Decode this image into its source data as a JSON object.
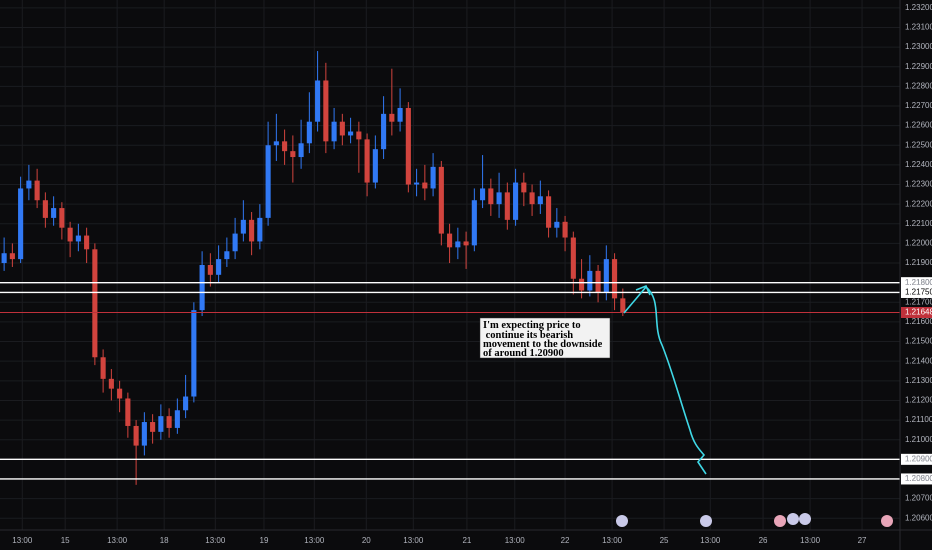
{
  "chart_data": {
    "type": "candlestick",
    "up_color": "#3179f5",
    "down_color": "#d2443e",
    "grid": true,
    "open": [
      1.219,
      1.2195,
      1.2192,
      1.2228,
      1.2232,
      1.2222,
      1.2213,
      1.2218,
      1.2208,
      1.2201,
      1.2204,
      1.2197,
      1.2142,
      1.2131,
      1.2126,
      1.2121,
      1.2107,
      1.2097,
      1.2109,
      1.2104,
      1.2112,
      1.2106,
      1.2115,
      1.2122,
      1.2166,
      1.2189,
      1.2184,
      1.2192,
      1.2196,
      1.2205,
      1.2212,
      1.2201,
      1.2213,
      1.225,
      1.2252,
      1.2247,
      1.2244,
      1.2251,
      1.2262,
      1.2283,
      1.2252,
      1.2262,
      1.2255,
      1.2257,
      1.2253,
      1.2231,
      1.2248,
      1.2266,
      1.2262,
      1.2269,
      1.223,
      1.2231,
      1.2228,
      1.2239,
      1.2205,
      1.2198,
      1.2201,
      1.2199,
      1.2222,
      1.2228,
      1.222,
      1.2226,
      1.2212,
      1.2231,
      1.2226,
      1.222,
      1.2224,
      1.2208,
      1.2211,
      1.2203,
      1.2182,
      1.2176,
      1.2186,
      1.2175,
      1.2192,
      1.2172
    ],
    "high": [
      1.2203,
      1.22,
      1.2234,
      1.224,
      1.2238,
      1.2226,
      1.2224,
      1.2221,
      1.2211,
      1.221,
      1.2208,
      1.22,
      1.2146,
      1.2136,
      1.213,
      1.2124,
      1.211,
      1.2114,
      1.2113,
      1.2118,
      1.2116,
      1.2121,
      1.2133,
      1.217,
      1.2196,
      1.2195,
      1.2199,
      1.2203,
      1.2213,
      1.2222,
      1.2216,
      1.222,
      1.2262,
      1.2266,
      1.2258,
      1.2255,
      1.2263,
      1.2277,
      1.2298,
      1.2292,
      1.2269,
      1.2266,
      1.2264,
      1.2262,
      1.2256,
      1.2255,
      1.2275,
      1.2289,
      1.2279,
      1.2272,
      1.2238,
      1.224,
      1.2246,
      1.2242,
      1.221,
      1.2208,
      1.2206,
      1.2228,
      1.2245,
      1.2233,
      1.2236,
      1.2231,
      1.2238,
      1.2236,
      1.223,
      1.2232,
      1.2227,
      1.2218,
      1.2214,
      1.2206,
      1.2192,
      1.2194,
      1.2189,
      1.2199,
      1.2195,
      1.2177
    ],
    "low": [
      1.2186,
      1.2188,
      1.219,
      1.2222,
      1.2218,
      1.2208,
      1.2209,
      1.2202,
      1.2193,
      1.2196,
      1.219,
      1.2138,
      1.2124,
      1.212,
      1.2114,
      1.2101,
      1.2077,
      1.2092,
      1.2098,
      1.21,
      1.2101,
      1.2103,
      1.2111,
      1.2119,
      1.2163,
      1.2178,
      1.218,
      1.2188,
      1.2192,
      1.2201,
      1.2194,
      1.2197,
      1.2209,
      1.2242,
      1.224,
      1.2231,
      1.2238,
      1.2246,
      1.2257,
      1.2246,
      1.2248,
      1.225,
      1.2251,
      1.2236,
      1.2224,
      1.2228,
      1.2243,
      1.2255,
      1.2257,
      1.2226,
      1.2224,
      1.2222,
      1.2224,
      1.2199,
      1.219,
      1.2192,
      1.2187,
      1.2196,
      1.2218,
      1.2214,
      1.2213,
      1.2207,
      1.2209,
      1.2219,
      1.2214,
      1.2215,
      1.2203,
      1.2203,
      1.2196,
      1.2174,
      1.2172,
      1.2173,
      1.217,
      1.2171,
      1.2166,
      1.2163
    ],
    "close": [
      1.2195,
      1.2192,
      1.2228,
      1.2232,
      1.2222,
      1.2213,
      1.2218,
      1.2208,
      1.2201,
      1.2204,
      1.2197,
      1.2142,
      1.2131,
      1.2126,
      1.2121,
      1.2107,
      1.2097,
      1.2109,
      1.2104,
      1.2112,
      1.2106,
      1.2115,
      1.2122,
      1.2166,
      1.2189,
      1.2184,
      1.2192,
      1.2196,
      1.2205,
      1.2212,
      1.2201,
      1.2213,
      1.225,
      1.2252,
      1.2247,
      1.2244,
      1.2251,
      1.2262,
      1.2283,
      1.2252,
      1.2262,
      1.2255,
      1.2257,
      1.2253,
      1.2231,
      1.2248,
      1.2266,
      1.2262,
      1.2269,
      1.223,
      1.2231,
      1.2228,
      1.2239,
      1.2205,
      1.2198,
      1.2201,
      1.2199,
      1.2222,
      1.2228,
      1.222,
      1.2226,
      1.2212,
      1.2231,
      1.2226,
      1.222,
      1.2224,
      1.2208,
      1.2211,
      1.2203,
      1.2182,
      1.2176,
      1.2186,
      1.2175,
      1.2192,
      1.2172,
      1.21648
    ],
    "xlim": [
      -0.5,
      108.6
    ],
    "xticks": [
      {
        "value": 2.2,
        "label": "13:00"
      },
      {
        "value": 7.4,
        "label": "15"
      },
      {
        "value": 13.7,
        "label": "13:00"
      },
      {
        "value": 19.4,
        "label": "18"
      },
      {
        "value": 25.6,
        "label": "13:00"
      },
      {
        "value": 31.5,
        "label": "19"
      },
      {
        "value": 37.6,
        "label": "13:00"
      },
      {
        "value": 43.9,
        "label": "20"
      },
      {
        "value": 49.6,
        "label": "13:00"
      },
      {
        "value": 56.1,
        "label": "21"
      },
      {
        "value": 61.9,
        "label": "13:00"
      },
      {
        "value": 68.0,
        "label": "22"
      },
      {
        "value": 73.7,
        "label": "13:00"
      },
      {
        "value": 80.0,
        "label": "25"
      },
      {
        "value": 85.6,
        "label": "13:00"
      },
      {
        "value": 92.0,
        "label": "26"
      },
      {
        "value": 97.7,
        "label": "13:00"
      },
      {
        "value": 104.0,
        "label": "27"
      }
    ],
    "ylim": [
      1.2054,
      1.2324
    ],
    "yticks": [
      {
        "value": 1.206,
        "label": "1.20600"
      },
      {
        "value": 1.207,
        "label": "1.20700"
      },
      {
        "value": 1.208,
        "label": "1.20800"
      },
      {
        "value": 1.209,
        "label": "1.20900"
      },
      {
        "value": 1.21,
        "label": "1.21000"
      },
      {
        "value": 1.211,
        "label": "1.21100"
      },
      {
        "value": 1.212,
        "label": "1.21200"
      },
      {
        "value": 1.213,
        "label": "1.21300"
      },
      {
        "value": 1.214,
        "label": "1.21400"
      },
      {
        "value": 1.215,
        "label": "1.21500"
      },
      {
        "value": 1.216,
        "label": "1.21600"
      },
      {
        "value": 1.217,
        "label": "1.21700"
      },
      {
        "value": 1.218,
        "label": "1.21800"
      },
      {
        "value": 1.219,
        "label": "1.21900"
      },
      {
        "value": 1.22,
        "label": "1.22000"
      },
      {
        "value": 1.221,
        "label": "1.22100"
      },
      {
        "value": 1.222,
        "label": "1.22200"
      },
      {
        "value": 1.223,
        "label": "1.22300"
      },
      {
        "value": 1.224,
        "label": "1.22400"
      },
      {
        "value": 1.225,
        "label": "1.22500"
      },
      {
        "value": 1.226,
        "label": "1.22600"
      },
      {
        "value": 1.227,
        "label": "1.22700"
      },
      {
        "value": 1.228,
        "label": "1.22800"
      },
      {
        "value": 1.229,
        "label": "1.22900"
      },
      {
        "value": 1.23,
        "label": "1.23000"
      },
      {
        "value": 1.231,
        "label": "1.23100"
      },
      {
        "value": 1.232,
        "label": "1.23200"
      }
    ],
    "levels": [
      {
        "value": 1.218,
        "label": "1.21800"
      },
      {
        "value": 1.2175,
        "label": "1.21750"
      },
      {
        "value": 1.209,
        "label": "1.20900"
      },
      {
        "value": 1.208,
        "label": "1.20800"
      }
    ],
    "current_price": {
      "value": 1.21648,
      "label": "1.21648",
      "color": "#c0313b"
    },
    "annotation": {
      "lines": [
        "I'm expecting price to",
        " continue its bearish",
        "movement to the downside",
        "of around 1.20900"
      ]
    }
  }
}
